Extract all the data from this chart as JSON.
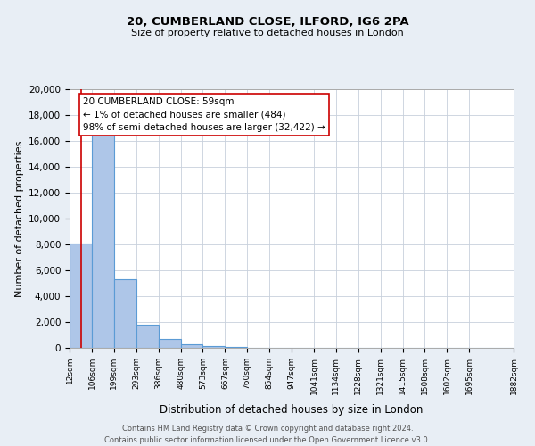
{
  "title1": "20, CUMBERLAND CLOSE, ILFORD, IG6 2PA",
  "title2": "Size of property relative to detached houses in London",
  "xlabel": "Distribution of detached houses by size in London",
  "ylabel": "Number of detached properties",
  "bar_values": [
    8100,
    16600,
    5300,
    1800,
    700,
    300,
    150,
    80,
    30,
    10,
    5,
    3,
    2,
    1,
    1,
    0,
    0,
    0,
    0
  ],
  "bin_edges": [
    12,
    106,
    199,
    293,
    386,
    480,
    573,
    667,
    760,
    854,
    947,
    1041,
    1134,
    1228,
    1321,
    1415,
    1508,
    1602,
    1695,
    1882
  ],
  "tick_labels": [
    "12sqm",
    "106sqm",
    "199sqm",
    "293sqm",
    "386sqm",
    "480sqm",
    "573sqm",
    "667sqm",
    "760sqm",
    "854sqm",
    "947sqm",
    "1041sqm",
    "1134sqm",
    "1228sqm",
    "1321sqm",
    "1415sqm",
    "1508sqm",
    "1602sqm",
    "1695sqm",
    "1882sqm"
  ],
  "bar_color": "#aec6e8",
  "bar_edge_color": "#5b9bd5",
  "property_line_x": 59,
  "property_line_color": "#cc0000",
  "annotation_line1": "20 CUMBERLAND CLOSE: 59sqm",
  "annotation_line2": "← 1% of detached houses are smaller (484)",
  "annotation_line3": "98% of semi-detached houses are larger (32,422) →",
  "annotation_box_color": "#ffffff",
  "annotation_box_edge_color": "#cc0000",
  "ylim": [
    0,
    20000
  ],
  "yticks": [
    0,
    2000,
    4000,
    6000,
    8000,
    10000,
    12000,
    14000,
    16000,
    18000,
    20000
  ],
  "background_color": "#ffffff",
  "grid_color": "#c8d0dc",
  "footnote1": "Contains HM Land Registry data © Crown copyright and database right 2024.",
  "footnote2": "Contains public sector information licensed under the Open Government Licence v3.0.",
  "fig_bg_color": "#e8eef5"
}
